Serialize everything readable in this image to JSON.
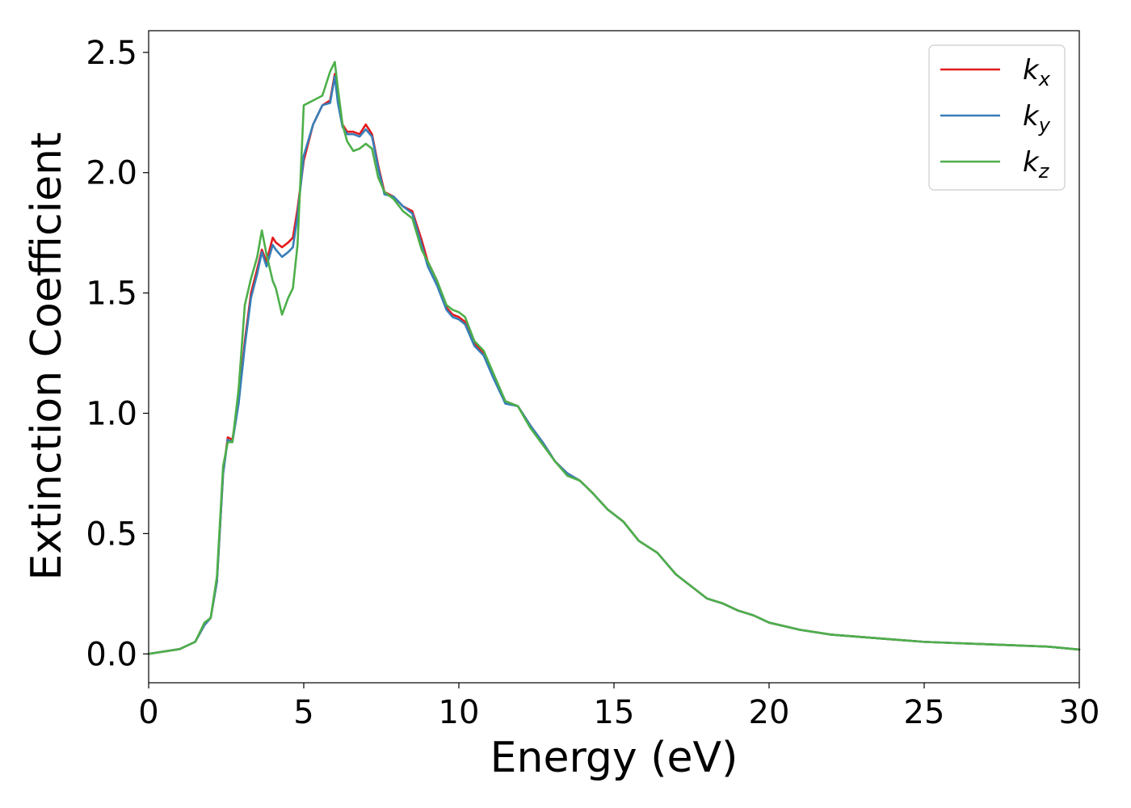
{
  "chart_data": {
    "type": "line",
    "title": "",
    "xlabel": "Energy (eV)",
    "ylabel": "Extinction Coefficient",
    "xlim": [
      0,
      30
    ],
    "ylim": [
      -0.12,
      2.59
    ],
    "xticks": [
      "0",
      "5",
      "10",
      "15",
      "20",
      "25",
      "30"
    ],
    "yticks": [
      "0.0",
      "0.5",
      "1.0",
      "1.5",
      "2.0",
      "2.5"
    ],
    "grid": false,
    "legend_position": "top-right",
    "series": [
      {
        "name": "k_x",
        "legend_main": "k",
        "legend_sub": "x",
        "color": "#e41a1c",
        "x": [
          0,
          1,
          1.5,
          1.8,
          2.0,
          2.2,
          2.4,
          2.55,
          2.7,
          2.9,
          3.1,
          3.3,
          3.5,
          3.65,
          3.8,
          4.0,
          4.1,
          4.3,
          4.5,
          4.65,
          4.8,
          5.0,
          5.3,
          5.6,
          5.85,
          6.0,
          6.1,
          6.25,
          6.4,
          6.6,
          6.8,
          7.0,
          7.2,
          7.4,
          7.6,
          7.9,
          8.2,
          8.5,
          8.8,
          9.0,
          9.3,
          9.6,
          9.8,
          10.0,
          10.2,
          10.5,
          10.8,
          11.1,
          11.5,
          11.9,
          12.3,
          12.7,
          13.1,
          13.5,
          13.9,
          14.3,
          14.8,
          15.3,
          15.8,
          16.4,
          17.0,
          17.5,
          18.0,
          18.5,
          19.0,
          19.5,
          20.0,
          21.0,
          22.0,
          23.0,
          24.0,
          25.0,
          26.0,
          27.0,
          28.0,
          29.0,
          30.0
        ],
        "y": [
          0.0,
          0.02,
          0.05,
          0.12,
          0.15,
          0.3,
          0.75,
          0.9,
          0.89,
          1.05,
          1.3,
          1.5,
          1.6,
          1.68,
          1.63,
          1.73,
          1.71,
          1.69,
          1.71,
          1.73,
          1.85,
          2.05,
          2.2,
          2.28,
          2.3,
          2.41,
          2.3,
          2.2,
          2.17,
          2.17,
          2.16,
          2.2,
          2.16,
          2.03,
          1.92,
          1.9,
          1.86,
          1.84,
          1.72,
          1.63,
          1.55,
          1.44,
          1.41,
          1.4,
          1.38,
          1.29,
          1.25,
          1.16,
          1.05,
          1.03,
          0.95,
          0.88,
          0.8,
          0.75,
          0.72,
          0.67,
          0.6,
          0.55,
          0.47,
          0.42,
          0.33,
          0.28,
          0.23,
          0.21,
          0.18,
          0.16,
          0.13,
          0.1,
          0.08,
          0.07,
          0.06,
          0.05,
          0.045,
          0.04,
          0.035,
          0.03,
          0.018
        ]
      },
      {
        "name": "k_y",
        "legend_main": "k",
        "legend_sub": "y",
        "color": "#377eb8",
        "x": [
          0,
          1,
          1.5,
          1.8,
          2.0,
          2.2,
          2.4,
          2.55,
          2.7,
          2.9,
          3.1,
          3.3,
          3.5,
          3.65,
          3.8,
          4.0,
          4.1,
          4.3,
          4.5,
          4.65,
          4.8,
          5.0,
          5.3,
          5.6,
          5.85,
          6.0,
          6.1,
          6.25,
          6.4,
          6.6,
          6.8,
          7.0,
          7.2,
          7.4,
          7.6,
          7.9,
          8.2,
          8.5,
          8.8,
          9.0,
          9.3,
          9.6,
          9.8,
          10.0,
          10.2,
          10.5,
          10.8,
          11.1,
          11.5,
          11.9,
          12.3,
          12.7,
          13.1,
          13.5,
          13.9,
          14.3,
          14.8,
          15.3,
          15.8,
          16.4,
          17.0,
          17.5,
          18.0,
          18.5,
          19.0,
          19.5,
          20.0,
          21.0,
          22.0,
          23.0,
          24.0,
          25.0,
          26.0,
          27.0,
          28.0,
          29.0,
          30.0
        ],
        "y": [
          0.0,
          0.02,
          0.05,
          0.12,
          0.15,
          0.3,
          0.75,
          0.89,
          0.88,
          1.04,
          1.28,
          1.48,
          1.58,
          1.67,
          1.61,
          1.7,
          1.68,
          1.65,
          1.67,
          1.69,
          1.82,
          2.07,
          2.2,
          2.28,
          2.29,
          2.4,
          2.29,
          2.19,
          2.16,
          2.16,
          2.15,
          2.18,
          2.15,
          2.02,
          1.91,
          1.9,
          1.86,
          1.83,
          1.7,
          1.61,
          1.53,
          1.43,
          1.4,
          1.39,
          1.37,
          1.28,
          1.24,
          1.15,
          1.04,
          1.03,
          0.95,
          0.88,
          0.8,
          0.75,
          0.72,
          0.67,
          0.6,
          0.55,
          0.47,
          0.42,
          0.33,
          0.28,
          0.23,
          0.21,
          0.18,
          0.16,
          0.13,
          0.1,
          0.08,
          0.07,
          0.06,
          0.05,
          0.045,
          0.04,
          0.035,
          0.03,
          0.018
        ]
      },
      {
        "name": "k_z",
        "legend_main": "k",
        "legend_sub": "z",
        "color": "#4daf4a",
        "x": [
          0,
          1,
          1.5,
          1.8,
          2.0,
          2.2,
          2.4,
          2.55,
          2.7,
          2.9,
          3.1,
          3.3,
          3.5,
          3.65,
          3.8,
          4.0,
          4.1,
          4.3,
          4.5,
          4.65,
          4.8,
          5.0,
          5.3,
          5.6,
          5.85,
          6.0,
          6.1,
          6.25,
          6.4,
          6.6,
          6.8,
          7.0,
          7.2,
          7.4,
          7.6,
          7.9,
          8.2,
          8.5,
          8.8,
          9.0,
          9.3,
          9.6,
          9.8,
          10.0,
          10.2,
          10.5,
          10.8,
          11.1,
          11.5,
          11.9,
          12.3,
          12.7,
          13.1,
          13.5,
          13.9,
          14.3,
          14.8,
          15.3,
          15.8,
          16.4,
          17.0,
          17.5,
          18.0,
          18.5,
          19.0,
          19.5,
          20.0,
          21.0,
          22.0,
          23.0,
          24.0,
          25.0,
          26.0,
          27.0,
          28.0,
          29.0,
          30.0
        ],
        "y": [
          0.0,
          0.02,
          0.05,
          0.13,
          0.15,
          0.32,
          0.78,
          0.88,
          0.88,
          1.1,
          1.45,
          1.56,
          1.65,
          1.76,
          1.66,
          1.55,
          1.52,
          1.41,
          1.48,
          1.52,
          1.7,
          2.28,
          2.3,
          2.32,
          2.42,
          2.46,
          2.35,
          2.2,
          2.13,
          2.09,
          2.1,
          2.12,
          2.1,
          1.98,
          1.92,
          1.89,
          1.84,
          1.81,
          1.68,
          1.63,
          1.55,
          1.45,
          1.43,
          1.42,
          1.4,
          1.3,
          1.26,
          1.17,
          1.05,
          1.03,
          0.94,
          0.87,
          0.8,
          0.74,
          0.72,
          0.67,
          0.6,
          0.55,
          0.47,
          0.42,
          0.33,
          0.28,
          0.23,
          0.21,
          0.18,
          0.16,
          0.13,
          0.1,
          0.08,
          0.07,
          0.06,
          0.05,
          0.045,
          0.04,
          0.035,
          0.03,
          0.018
        ]
      }
    ]
  }
}
